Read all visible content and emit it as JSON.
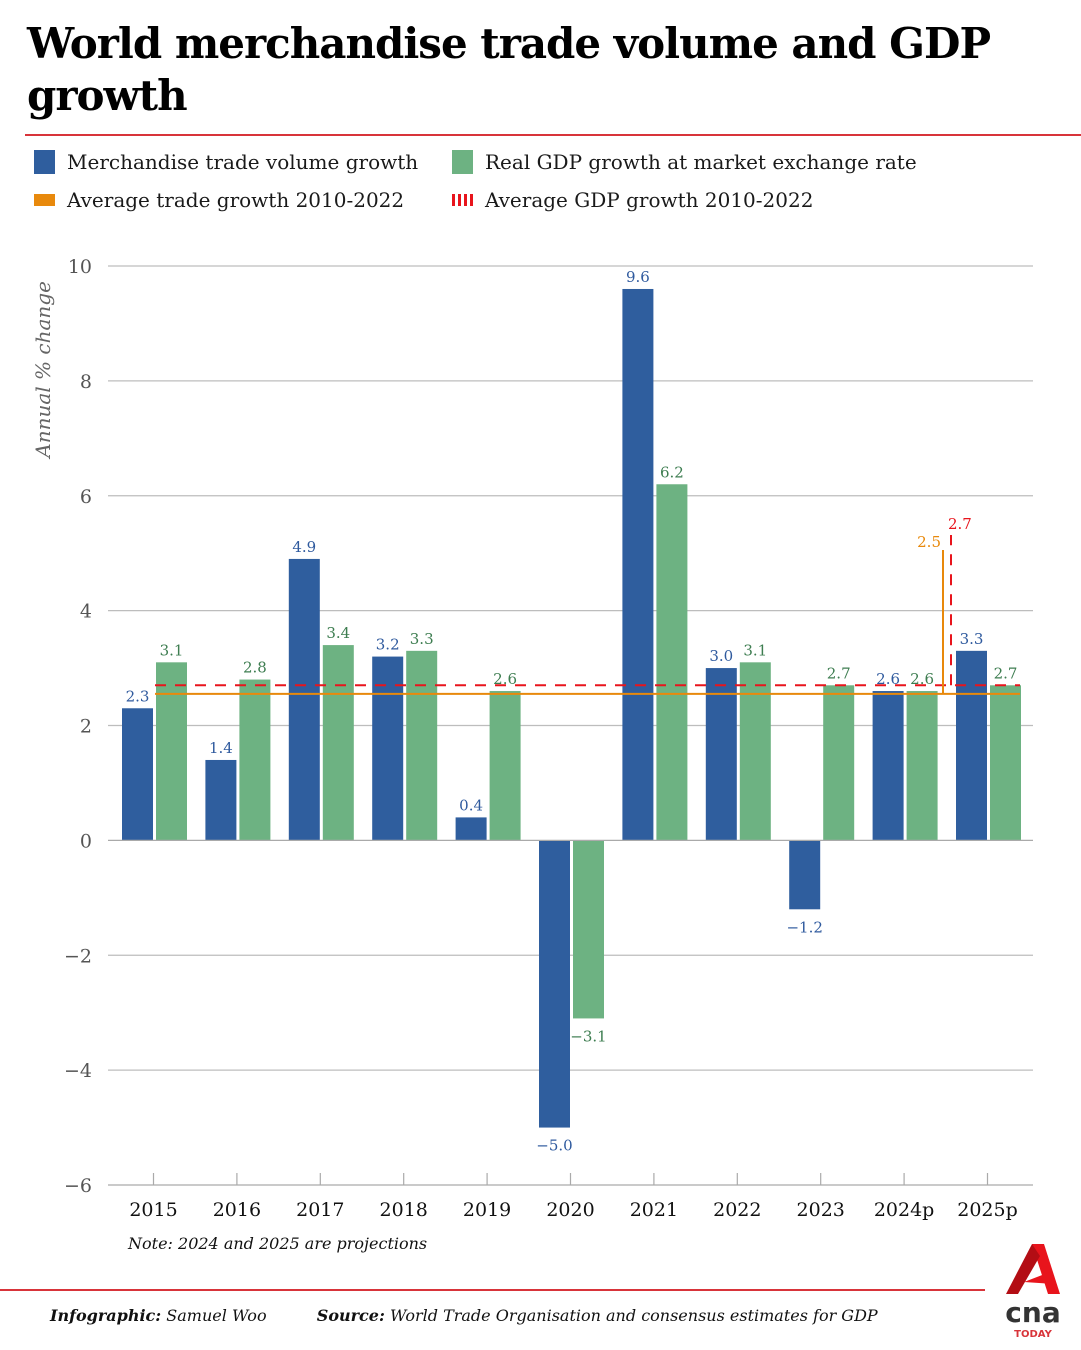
{
  "title": "World merchandise trade volume and GDP growth",
  "legend": [
    {
      "label": "Merchandise trade volume growth",
      "kind": "box",
      "color": "#2f5e9e"
    },
    {
      "label": "Real GDP growth at market exchange rate",
      "kind": "box",
      "color": "#6db282"
    },
    {
      "label": "Average trade growth 2010-2022",
      "kind": "line",
      "color": "#e8890c"
    },
    {
      "label": "Average GDP growth 2010-2022",
      "kind": "dash",
      "color": "#e8141c"
    }
  ],
  "note": "Note: 2024 and 2025 are projections",
  "footer": {
    "infographic_label": "Infographic:",
    "infographic_value": "Samuel Woo",
    "source_label": "Source:",
    "source_value": "World Trade Organisation and consensus estimates for GDP"
  },
  "logo": {
    "brand": "cna",
    "sub": "TODAY"
  },
  "chart_data": {
    "type": "bar",
    "title": "World merchandise trade volume and GDP growth",
    "xlabel": "",
    "ylabel": "Annual % change",
    "ylim": [
      -6,
      10
    ],
    "yticks": [
      10,
      8,
      6,
      4,
      2,
      0,
      -2,
      -4,
      -6
    ],
    "ytick_labels": [
      "10",
      "8",
      "6",
      "4",
      "2",
      "0",
      "-2",
      "-4",
      "-6"
    ],
    "grid": true,
    "legend_position": "top-left",
    "categories": [
      "2015",
      "2016",
      "2017",
      "2018",
      "2019",
      "2020",
      "2021",
      "2022",
      "2023",
      "2024p",
      "2025p"
    ],
    "series": [
      {
        "name": "Merchandise trade volume growth",
        "color": "#2f5e9e",
        "label_color": "#2f5a9e",
        "values": [
          2.3,
          1.4,
          4.9,
          3.2,
          0.4,
          -5.0,
          9.6,
          3.0,
          -1.2,
          2.6,
          3.3
        ],
        "labels": [
          "2.3",
          "1.4",
          "4.9",
          "3.2",
          "0.4",
          "-5.0",
          "9.6",
          "3.0",
          "-1.2",
          "2.6",
          "3.3"
        ]
      },
      {
        "name": "Real GDP growth at market exchange rate",
        "color": "#6db282",
        "label_color": "#3d7d50",
        "values": [
          3.1,
          2.8,
          3.4,
          3.3,
          2.6,
          -3.1,
          6.2,
          3.1,
          2.7,
          2.6,
          2.7
        ],
        "labels": [
          "3.1",
          "2.8",
          "3.4",
          "3.3",
          "2.6",
          "-3.1",
          "6.2",
          "3.1",
          "2.7",
          "2.6",
          "2.7"
        ]
      }
    ],
    "reference_lines": [
      {
        "name": "Average trade growth 2010-2022",
        "value": 2.55,
        "label": "2.5",
        "color": "#e8890c",
        "style": "solid"
      },
      {
        "name": "Average GDP growth 2010-2022",
        "value": 2.7,
        "label": "2.7",
        "color": "#e8141c",
        "style": "dashed"
      }
    ],
    "annotations": [
      "Note: 2024 and 2025 are projections"
    ]
  }
}
